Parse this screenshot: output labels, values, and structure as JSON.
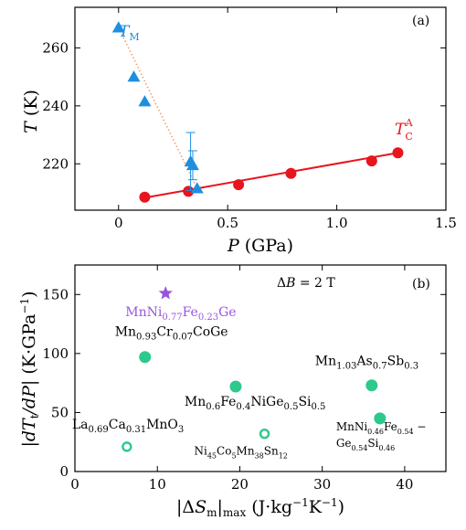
{
  "chart_data": [
    {
      "type": "scatter",
      "panel_label": "(a)",
      "xlabel": "P (GPa)",
      "ylabel": "T (K)",
      "xlim": [
        -0.2,
        1.5
      ],
      "ylim": [
        204,
        274
      ],
      "xticks": [
        0,
        0.5,
        1.0,
        1.5
      ],
      "xtick_labels": [
        "0",
        "0.5",
        "1.0",
        "1.5"
      ],
      "yticks": [
        220,
        240,
        260
      ],
      "ytick_labels": [
        "220",
        "240",
        "260"
      ],
      "grid": false,
      "series": [
        {
          "name": "T_C^A",
          "label_main": "T",
          "label_sub": "C",
          "label_sup": "A",
          "marker": "circle",
          "color": "#e8141e",
          "x": [
            0.12,
            0.32,
            0.55,
            0.79,
            1.16,
            1.28
          ],
          "y": [
            208.5,
            210.5,
            212.8,
            216.7,
            221.0,
            223.8
          ],
          "fit": {
            "style": "solid",
            "x": [
              0.12,
              1.28
            ],
            "y": [
              208.3,
              223.8
            ]
          }
        },
        {
          "name": "T_M",
          "label_main": "T",
          "label_sub": "M",
          "marker": "triangle",
          "color": "#1e8fe0",
          "x": [
            0.0,
            0.07,
            0.12,
            0.33,
            0.34,
            0.36
          ],
          "y": [
            267.0,
            250.0,
            241.5,
            220.8,
            219.5,
            211.5
          ],
          "error_y": [
            0,
            0,
            0,
            10,
            5,
            0
          ],
          "fit": {
            "style": "dotted",
            "color": "#f0a070",
            "x": [
              0.0,
              0.36
            ],
            "y": [
              267.0,
              211.5
            ]
          }
        }
      ]
    },
    {
      "type": "scatter",
      "panel_label": "(b)",
      "annotation_main": "ΔB = 2 T",
      "xlabel": "|ΔS_m|_max (J·kg⁻¹K⁻¹)",
      "ylabel": "|dT_t/dP| (K·GPa⁻¹)",
      "xlim": [
        0,
        45
      ],
      "ylim": [
        0,
        175
      ],
      "xticks": [
        0,
        10,
        20,
        30,
        40
      ],
      "xtick_labels": [
        "0",
        "10",
        "20",
        "30",
        "40"
      ],
      "yticks": [
        0,
        50,
        100,
        150
      ],
      "ytick_labels": [
        "0",
        "50",
        "100",
        "150"
      ],
      "grid": false,
      "points": [
        {
          "x": 11,
          "y": 151,
          "marker": "star",
          "color": "#9955dd",
          "label": "MnNi0.77Fe0.23Ge",
          "label_parts": [
            [
              "MnNi",
              ""
            ],
            [
              "0.77",
              "sub"
            ],
            [
              "Fe",
              ""
            ],
            [
              "0.23",
              "sub"
            ],
            [
              "Ge",
              ""
            ]
          ]
        },
        {
          "x": 8.5,
          "y": 97,
          "marker": "filled",
          "color": "#2dc98c",
          "label": "Mn0.93Cr0.07CoGe",
          "label_parts": [
            [
              "Mn",
              ""
            ],
            [
              "0.93",
              "sub"
            ],
            [
              "Cr",
              ""
            ],
            [
              "0.07",
              "sub"
            ],
            [
              "CoGe",
              ""
            ]
          ]
        },
        {
          "x": 19.5,
          "y": 72,
          "marker": "filled",
          "color": "#2dc98c",
          "label": "Mn0.6Fe0.4NiGe0.5Si0.5",
          "label_parts": [
            [
              "Mn",
              ""
            ],
            [
              "0.6",
              "sub"
            ],
            [
              "Fe",
              ""
            ],
            [
              "0.4",
              "sub"
            ],
            [
              "NiGe",
              ""
            ],
            [
              "0.5",
              "sub"
            ],
            [
              "Si",
              ""
            ],
            [
              "0.5",
              "sub"
            ]
          ]
        },
        {
          "x": 36,
          "y": 73,
          "marker": "filled",
          "color": "#2dc98c",
          "label": "Mn1.03As0.7Sb0.3",
          "label_parts": [
            [
              "Mn",
              ""
            ],
            [
              "1.03",
              "sub"
            ],
            [
              "As",
              ""
            ],
            [
              "0.7",
              "sub"
            ],
            [
              "Sb",
              ""
            ],
            [
              "0.3",
              "sub"
            ]
          ]
        },
        {
          "x": 37,
          "y": 45,
          "marker": "filled",
          "color": "#2dc98c",
          "label": "MnNi0.46Fe0.54 − Ge0.54Si0.46",
          "label_parts": [
            [
              "MnNi",
              ""
            ],
            [
              "0.46",
              "sub"
            ],
            [
              "Fe",
              ""
            ],
            [
              "0.54",
              "sub"
            ],
            [
              " −",
              ""
            ]
          ],
          "label_parts_2": [
            [
              "Ge",
              ""
            ],
            [
              "0.54",
              "sub"
            ],
            [
              "Si",
              ""
            ],
            [
              "0.46",
              "sub"
            ]
          ]
        },
        {
          "x": 6.3,
          "y": 21,
          "marker": "open",
          "color": "#2dc98c",
          "label": "La0.69Ca0.31MnO3",
          "label_parts": [
            [
              "La",
              ""
            ],
            [
              "0.69",
              "sub"
            ],
            [
              "Ca",
              ""
            ],
            [
              "0.31",
              "sub"
            ],
            [
              "MnO",
              ""
            ],
            [
              "3",
              "sub"
            ]
          ]
        },
        {
          "x": 23,
          "y": 32,
          "marker": "open",
          "color": "#2dc98c",
          "label": "Ni45Co5Mn38Sn12",
          "label_parts": [
            [
              "Ni",
              ""
            ],
            [
              "45",
              "sub"
            ],
            [
              "Co",
              ""
            ],
            [
              "5",
              "sub"
            ],
            [
              "Mn",
              ""
            ],
            [
              "38",
              "sub"
            ],
            [
              "Sn",
              ""
            ],
            [
              "12",
              "sub"
            ]
          ]
        }
      ]
    }
  ]
}
